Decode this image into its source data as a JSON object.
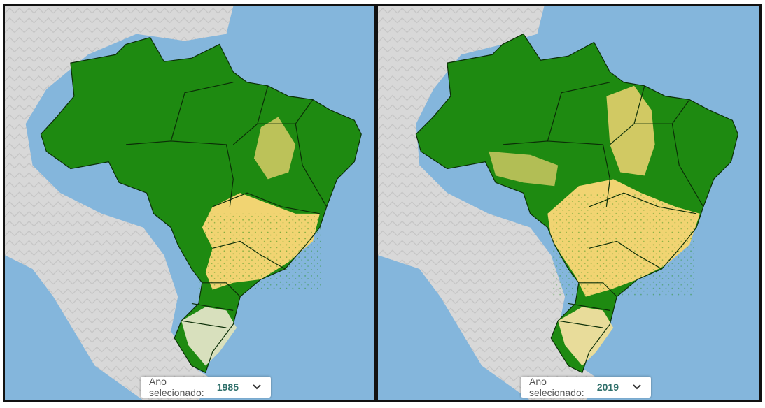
{
  "colors": {
    "ocean": "#84b6dc",
    "land_relief": "#d6d6d6",
    "forest": "#1e8a11",
    "agriculture": "#f1d472",
    "non_forest": "#c9d6b4",
    "border": "#0b2e07"
  },
  "panels": [
    {
      "selector_label": "Ano selecionado:",
      "selected_year": "1985",
      "icon": "chevron-down-icon"
    },
    {
      "selector_label": "Ano selecionado:",
      "selected_year": "2019",
      "icon": "chevron-down-icon"
    }
  ]
}
